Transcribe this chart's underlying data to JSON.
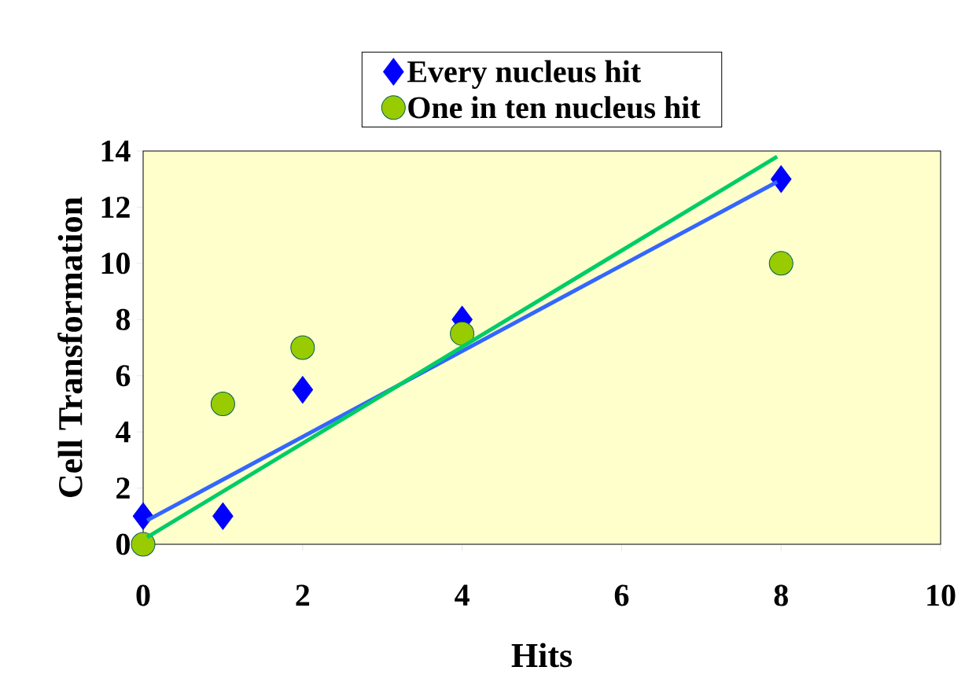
{
  "chart_data": {
    "type": "scatter",
    "xlabel": "Hits",
    "ylabel": "Cell Transformation",
    "xlim": [
      0,
      10
    ],
    "ylim": [
      0,
      14
    ],
    "xticks": [
      0,
      2,
      4,
      6,
      8,
      10
    ],
    "yticks": [
      0,
      2,
      4,
      6,
      8,
      10,
      12,
      14
    ],
    "grid": false,
    "legend": "top",
    "series": [
      {
        "name": "Every nucleus hit",
        "color": "#0000ff",
        "marker": "diamond",
        "x": [
          0,
          1,
          2,
          4,
          8
        ],
        "values": [
          1,
          1,
          5.5,
          8,
          13
        ]
      },
      {
        "name": "One in ten nucleus hit",
        "color": "#99cc00",
        "marker": "circle",
        "x": [
          0,
          1,
          2,
          4,
          8
        ],
        "values": [
          0,
          5,
          7,
          7.5,
          10
        ]
      },
      {
        "type": "line",
        "color": "#3366ff",
        "x": [
          0.05,
          7.95
        ],
        "values": [
          0.85,
          12.9
        ]
      },
      {
        "type": "line",
        "color": "#00cc66",
        "x": [
          0.05,
          7.95
        ],
        "values": [
          0.25,
          13.8
        ]
      }
    ]
  }
}
